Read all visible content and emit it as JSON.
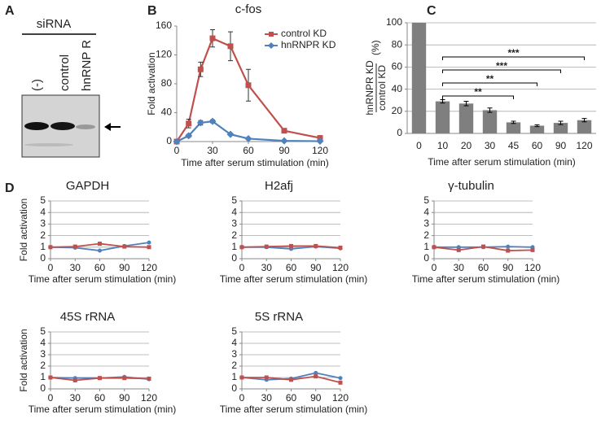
{
  "figure": {
    "panel_labels": [
      "A",
      "B",
      "C",
      "D"
    ]
  },
  "blot": {
    "title": "siRNA",
    "lanes": [
      "(-)",
      "control",
      "hnRNP R"
    ]
  },
  "chart_data": [
    {
      "type": "line",
      "title": "c-fos",
      "xlabel": "Time after serum stimulation (min)",
      "ylabel": "Fold activation",
      "x": [
        0,
        10,
        20,
        30,
        45,
        60,
        90,
        120
      ],
      "xlim": [
        0,
        120
      ],
      "xticks": [
        0,
        30,
        60,
        90,
        120
      ],
      "ylim": [
        0,
        160
      ],
      "yticks": [
        0,
        40,
        80,
        120,
        160
      ],
      "grid": false,
      "legend": "top-right",
      "series": [
        {
          "name": "control  KD",
          "color": "#c0504d",
          "marker": "square",
          "values": [
            0,
            25,
            100,
            143,
            132,
            78,
            15,
            5
          ],
          "errors": [
            0,
            6,
            10,
            12,
            20,
            22,
            3,
            2
          ]
        },
        {
          "name": "hnRNPR  KD",
          "color": "#4f81bd",
          "marker": "diamond",
          "values": [
            0,
            8,
            26,
            28,
            10,
            4,
            1,
            0.5
          ],
          "errors": [
            0,
            2,
            3,
            2,
            1,
            1,
            0.5,
            0.3
          ]
        }
      ]
    },
    {
      "type": "bar",
      "xlabel": "Time after serum stimulation (min)",
      "ylabel": {
        "numerator": "hnRNPR KD",
        "denominator": "control KD",
        "unit": "(%)"
      },
      "categories": [
        "0",
        "10",
        "20",
        "30",
        "45",
        "60",
        "90",
        "120"
      ],
      "values": [
        100,
        29,
        27,
        21,
        10,
        7,
        9.5,
        12
      ],
      "errors": [
        0,
        1.5,
        2,
        2,
        1,
        0.8,
        1.5,
        1.5
      ],
      "color": "#7f7f7f",
      "ylim": [
        0,
        100
      ],
      "yticks": [
        0,
        20,
        40,
        60,
        80,
        100
      ],
      "grid": true,
      "annotations": [
        "**",
        "**",
        "***",
        "***"
      ]
    },
    {
      "type": "line",
      "title": "GAPDH",
      "xlabel": "Time after serum stimulation (min)",
      "ylabel": "Fold activation",
      "x": [
        0,
        30,
        60,
        90,
        120
      ],
      "xlim": [
        0,
        120
      ],
      "xticks": [
        0,
        30,
        60,
        90,
        120
      ],
      "ylim": [
        0,
        5
      ],
      "yticks": [
        0,
        1,
        2,
        3,
        4,
        5
      ],
      "grid": true,
      "series": [
        {
          "color": "#4f81bd",
          "marker": "circle",
          "values": [
            1,
            0.95,
            0.7,
            1.1,
            1.4
          ]
        },
        {
          "color": "#c0504d",
          "marker": "square",
          "values": [
            1,
            1.05,
            1.3,
            1.05,
            1.0
          ]
        }
      ]
    },
    {
      "type": "line",
      "title": "H2afj",
      "xlabel": "Time after serum stimulation (min)",
      "x": [
        0,
        30,
        60,
        90,
        120
      ],
      "xlim": [
        0,
        120
      ],
      "xticks": [
        0,
        30,
        60,
        90,
        120
      ],
      "ylim": [
        0,
        5
      ],
      "yticks": [
        0,
        1,
        2,
        3,
        4,
        5
      ],
      "grid": true,
      "series": [
        {
          "color": "#4f81bd",
          "marker": "circle",
          "values": [
            1,
            1.0,
            0.85,
            1.05,
            0.9
          ]
        },
        {
          "color": "#c0504d",
          "marker": "square",
          "values": [
            1,
            1.05,
            1.1,
            1.1,
            0.95
          ]
        }
      ]
    },
    {
      "type": "line",
      "title": "γ-tubulin",
      "xlabel": "Time after serum stimulation (min)",
      "x": [
        0,
        30,
        60,
        90,
        120
      ],
      "xlim": [
        0,
        120
      ],
      "xticks": [
        0,
        30,
        60,
        90,
        120
      ],
      "ylim": [
        0,
        5
      ],
      "yticks": [
        0,
        1,
        2,
        3,
        4,
        5
      ],
      "grid": true,
      "series": [
        {
          "color": "#4f81bd",
          "marker": "circle",
          "values": [
            1,
            1.0,
            1.0,
            1.05,
            1.0
          ]
        },
        {
          "color": "#c0504d",
          "marker": "square",
          "values": [
            1,
            0.75,
            1.05,
            0.7,
            0.75
          ]
        }
      ]
    },
    {
      "type": "line",
      "title": "45S rRNA",
      "xlabel": "Time after serum stimulation (min)",
      "ylabel": "Fold activation",
      "x": [
        0,
        30,
        60,
        90,
        120
      ],
      "xlim": [
        0,
        120
      ],
      "xticks": [
        0,
        30,
        60,
        90,
        120
      ],
      "ylim": [
        0,
        5
      ],
      "yticks": [
        0,
        1,
        2,
        3,
        4,
        5
      ],
      "grid": true,
      "series": [
        {
          "color": "#4f81bd",
          "marker": "circle",
          "values": [
            1,
            0.95,
            0.95,
            1.05,
            0.85
          ]
        },
        {
          "color": "#c0504d",
          "marker": "square",
          "values": [
            1,
            0.75,
            0.95,
            0.95,
            0.9
          ]
        }
      ]
    },
    {
      "type": "line",
      "title": "5S rRNA",
      "xlabel": "Time after serum stimulation (min)",
      "x": [
        0,
        30,
        60,
        90,
        120
      ],
      "xlim": [
        0,
        120
      ],
      "xticks": [
        0,
        30,
        60,
        90,
        120
      ],
      "ylim": [
        0,
        5
      ],
      "yticks": [
        0,
        1,
        2,
        3,
        4,
        5
      ],
      "grid": true,
      "series": [
        {
          "color": "#4f81bd",
          "marker": "circle",
          "values": [
            1,
            0.8,
            0.9,
            1.4,
            0.95
          ]
        },
        {
          "color": "#c0504d",
          "marker": "square",
          "values": [
            1,
            1.0,
            0.8,
            1.1,
            0.55
          ]
        }
      ]
    }
  ]
}
